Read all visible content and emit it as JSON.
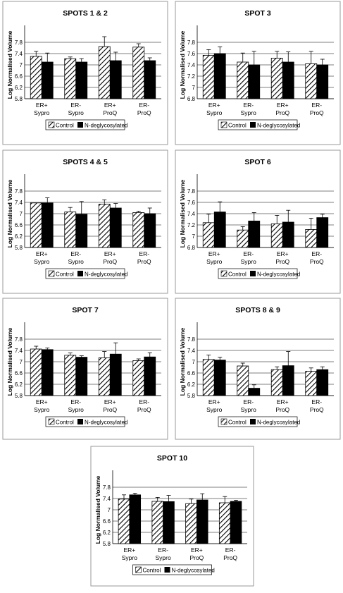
{
  "legend": {
    "control": "Control",
    "deglyco": "N-deglycosylated"
  },
  "colors": {
    "frame": "#9a9a9a",
    "axis": "#000000",
    "control_hatch": "#000000",
    "deglyco_fill": "#000000"
  },
  "ylabel": "Log Normalised Volume",
  "chart_data": [
    {
      "type": "bar",
      "title": "SPOTS 1 & 2",
      "ylabel": "Log Normalised Volume",
      "categories": [
        "ER+\nSypro",
        "ER-\nSypro",
        "ER+\nProQ",
        "ER-\nProQ"
      ],
      "yticks": [
        5.8,
        6.2,
        6.6,
        7,
        7.4,
        7.8
      ],
      "ylim": [
        5.8,
        8.2
      ],
      "series": [
        {
          "name": "Control",
          "values": [
            7.3,
            7.22,
            7.65,
            7.63
          ],
          "errors": [
            0.18,
            0.06,
            0.35,
            0.12
          ]
        },
        {
          "name": "N-deglycosylated",
          "values": [
            7.1,
            7.1,
            7.15,
            7.15
          ],
          "errors": [
            0.32,
            0.12,
            0.3,
            0.1
          ]
        }
      ],
      "legend_position": "bottom",
      "grid": true
    },
    {
      "type": "bar",
      "title": "SPOT 3",
      "ylabel": "Log Normalised Volume",
      "categories": [
        "ER+\nSypro",
        "ER-\nSypro",
        "ER+\nProQ",
        "ER-\nProQ"
      ],
      "yticks": [
        6.8,
        7,
        7.2,
        7.4,
        7.6,
        7.8
      ],
      "ylim": [
        6.8,
        8.0
      ],
      "series": [
        {
          "name": "Control",
          "values": [
            7.57,
            7.45,
            7.52,
            7.42
          ],
          "errors": [
            0.1,
            0.16,
            0.12,
            0.22
          ]
        },
        {
          "name": "N-deglycosylated",
          "values": [
            7.6,
            7.4,
            7.45,
            7.4
          ],
          "errors": [
            0.12,
            0.24,
            0.18,
            0.1
          ]
        }
      ],
      "legend_position": "bottom",
      "grid": true
    },
    {
      "type": "bar",
      "title": "SPOTS 4 & 5",
      "ylabel": "Log Normalised Volume",
      "categories": [
        "ER+\nSypro",
        "ER-\nSypro",
        "ER+\nProQ",
        "ER-\nProQ"
      ],
      "yticks": [
        5.8,
        6.2,
        6.6,
        7,
        7.4,
        7.8
      ],
      "ylim": [
        5.8,
        8.2
      ],
      "series": [
        {
          "name": "Control",
          "values": [
            7.38,
            7.06,
            7.34,
            7.04
          ],
          "errors": [
            0.0,
            0.16,
            0.15,
            0.05
          ]
        },
        {
          "name": "N-deglycosylated",
          "values": [
            7.38,
            6.98,
            7.2,
            7.0
          ],
          "errors": [
            0.18,
            0.45,
            0.16,
            0.2
          ]
        }
      ],
      "legend_position": "bottom",
      "grid": true
    },
    {
      "type": "bar",
      "title": "SPOT 6",
      "ylabel": "Log Normalised Volume",
      "categories": [
        "ER+\nSypro",
        "ER-\nSypro",
        "ER+\nProQ",
        "ER-\nProQ"
      ],
      "yticks": [
        6.8,
        7,
        7.2,
        7.4,
        7.6,
        7.8
      ],
      "ylim": [
        6.8,
        8.0
      ],
      "series": [
        {
          "name": "Control",
          "values": [
            7.24,
            7.11,
            7.22,
            7.12
          ],
          "errors": [
            0.15,
            0.06,
            0.15,
            0.2
          ]
        },
        {
          "name": "N-deglycosylated",
          "values": [
            7.43,
            7.27,
            7.25,
            7.33
          ],
          "errors": [
            0.18,
            0.15,
            0.21,
            0.06
          ]
        }
      ],
      "legend_position": "bottom",
      "grid": true
    },
    {
      "type": "bar",
      "title": "SPOT 7",
      "ylabel": "Log Normalised Volume",
      "categories": [
        "ER+\nSypro",
        "ER-\nSypro",
        "ER+\nProQ",
        "ER-\nProQ"
      ],
      "yticks": [
        5.8,
        6.2,
        6.6,
        7,
        7.4,
        7.8
      ],
      "ylim": [
        5.8,
        8.2
      ],
      "series": [
        {
          "name": "Control",
          "values": [
            7.45,
            7.23,
            7.14,
            7.04
          ],
          "errors": [
            0.1,
            0.08,
            0.22,
            0.06
          ]
        },
        {
          "name": "N-deglycosylated",
          "values": [
            7.43,
            7.16,
            7.27,
            7.17
          ],
          "errors": [
            0.06,
            0.05,
            0.4,
            0.15
          ]
        }
      ],
      "legend_position": "bottom",
      "grid": true
    },
    {
      "type": "bar",
      "title": "SPOTS 8 & 9",
      "ylabel": "Log Normalised Volume",
      "categories": [
        "ER+\nSypro",
        "ER-\nSypro",
        "ER+\nProQ",
        "ER-\nProQ"
      ],
      "yticks": [
        5.8,
        6.2,
        6.6,
        7,
        7.4,
        7.8
      ],
      "ylim": [
        5.8,
        8.2
      ],
      "series": [
        {
          "name": "Control",
          "values": [
            7.08,
            6.85,
            6.72,
            6.66
          ],
          "errors": [
            0.16,
            0.1,
            0.1,
            0.12
          ]
        },
        {
          "name": "N-deglycosylated",
          "values": [
            7.06,
            6.06,
            6.86,
            6.72
          ],
          "errors": [
            0.1,
            0.12,
            0.5,
            0.1
          ]
        }
      ],
      "legend_position": "bottom",
      "grid": true
    },
    {
      "type": "bar",
      "title": "SPOT 10",
      "ylabel": "Log Normalised Volume",
      "categories": [
        "ER+\nSypro",
        "ER-\nSypro",
        "ER+\nProQ",
        "ER-\nProQ"
      ],
      "yticks": [
        5.8,
        6.2,
        6.6,
        7,
        7.4,
        7.8
      ],
      "ylim": [
        5.8,
        8.2
      ],
      "series": [
        {
          "name": "Control",
          "values": [
            7.38,
            7.3,
            7.22,
            7.25
          ],
          "errors": [
            0.15,
            0.14,
            0.16,
            0.22
          ]
        },
        {
          "name": "N-deglycosylated",
          "values": [
            7.53,
            7.29,
            7.35,
            7.3
          ],
          "errors": [
            0.06,
            0.22,
            0.22,
            0.04
          ]
        }
      ],
      "legend_position": "bottom",
      "grid": true
    }
  ]
}
